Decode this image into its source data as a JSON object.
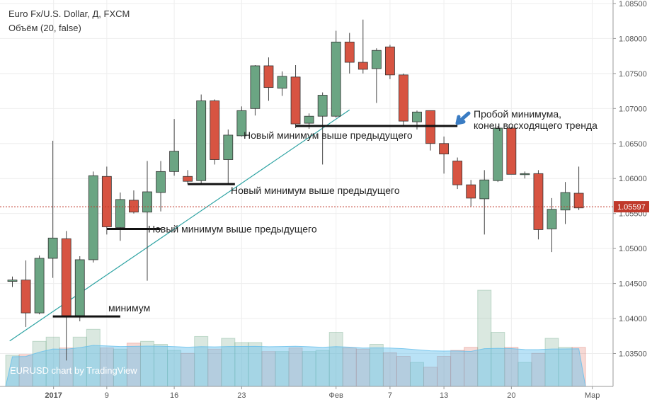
{
  "header": {
    "symbol_line": "Euro Fx/U.S. Dollar, Д, FXCM",
    "volume_line": "Объём (20, false)"
  },
  "watermark": "EURUSD chart by TradingView",
  "colors": {
    "up": "#6ba583",
    "down": "#d75442",
    "grid": "#eeeeee",
    "trendline": "#2ea3a3",
    "price_line": "#c0392b",
    "annotation_arrow": "#3a7cc3"
  },
  "chart_data": {
    "type": "candlestick",
    "y_axis": {
      "range": [
        1.0303,
        1.0855
      ],
      "ticks": [
        "1.08500",
        "1.08000",
        "1.07500",
        "1.07000",
        "1.06500",
        "1.06000",
        "1.05500",
        "1.05000",
        "1.04500",
        "1.04000",
        "1.03500"
      ]
    },
    "x_axis": {
      "ticks": [
        {
          "label": "2017",
          "bar": 3,
          "bold": true
        },
        {
          "label": "9",
          "bar": 7
        },
        {
          "label": "16",
          "bar": 12
        },
        {
          "label": "23",
          "bar": 17
        },
        {
          "label": "Фев",
          "bar": 24
        },
        {
          "label": "7",
          "bar": 28
        },
        {
          "label": "13",
          "bar": 32
        },
        {
          "label": "20",
          "bar": 37
        },
        {
          "label": "Мар",
          "bar": 43
        }
      ]
    },
    "current_price": "1.05597",
    "candles": [
      {
        "o": 1.0453,
        "h": 1.046,
        "l": 1.0445,
        "c": 1.0455
      },
      {
        "o": 1.0455,
        "h": 1.0483,
        "l": 1.0388,
        "c": 1.0408
      },
      {
        "o": 1.0408,
        "h": 1.049,
        "l": 1.0406,
        "c": 1.0486
      },
      {
        "o": 1.0486,
        "h": 1.0654,
        "l": 1.0458,
        "c": 1.0515
      },
      {
        "o": 1.0514,
        "h": 1.0525,
        "l": 1.034,
        "c": 1.0403
      },
      {
        "o": 1.0404,
        "h": 1.0489,
        "l": 1.0396,
        "c": 1.0484
      },
      {
        "o": 1.0484,
        "h": 1.061,
        "l": 1.048,
        "c": 1.0604
      },
      {
        "o": 1.0603,
        "h": 1.0617,
        "l": 1.052,
        "c": 1.0531
      },
      {
        "o": 1.053,
        "h": 1.058,
        "l": 1.0511,
        "c": 1.057
      },
      {
        "o": 1.0569,
        "h": 1.0583,
        "l": 1.055,
        "c": 1.0552
      },
      {
        "o": 1.0552,
        "h": 1.0625,
        "l": 1.0454,
        "c": 1.0581
      },
      {
        "o": 1.058,
        "h": 1.0625,
        "l": 1.0553,
        "c": 1.061
      },
      {
        "o": 1.061,
        "h": 1.0685,
        "l": 1.0604,
        "c": 1.0639
      },
      {
        "o": 1.0603,
        "h": 1.0612,
        "l": 1.0592,
        "c": 1.0596
      },
      {
        "o": 1.0597,
        "h": 1.072,
        "l": 1.0593,
        "c": 1.0711
      },
      {
        "o": 1.0711,
        "h": 1.0713,
        "l": 1.062,
        "c": 1.0627
      },
      {
        "o": 1.0627,
        "h": 1.067,
        "l": 1.0592,
        "c": 1.0662
      },
      {
        "o": 1.0661,
        "h": 1.0703,
        "l": 1.066,
        "c": 1.0697
      },
      {
        "o": 1.07,
        "h": 1.0762,
        "l": 1.069,
        "c": 1.0761
      },
      {
        "o": 1.0761,
        "h": 1.0773,
        "l": 1.0711,
        "c": 1.073
      },
      {
        "o": 1.0729,
        "h": 1.0753,
        "l": 1.0718,
        "c": 1.0746
      },
      {
        "o": 1.0745,
        "h": 1.0762,
        "l": 1.0672,
        "c": 1.0678
      },
      {
        "o": 1.0679,
        "h": 1.0693,
        "l": 1.0671,
        "c": 1.0689
      },
      {
        "o": 1.0689,
        "h": 1.0723,
        "l": 1.062,
        "c": 1.0719
      },
      {
        "o": 1.0689,
        "h": 1.0811,
        "l": 1.0687,
        "c": 1.0795
      },
      {
        "o": 1.0795,
        "h": 1.0808,
        "l": 1.075,
        "c": 1.0766
      },
      {
        "o": 1.0766,
        "h": 1.0827,
        "l": 1.075,
        "c": 1.0756
      },
      {
        "o": 1.0757,
        "h": 1.0786,
        "l": 1.0708,
        "c": 1.0783
      },
      {
        "o": 1.0788,
        "h": 1.0791,
        "l": 1.0742,
        "c": 1.0748
      },
      {
        "o": 1.0748,
        "h": 1.075,
        "l": 1.0675,
        "c": 1.0682
      },
      {
        "o": 1.0681,
        "h": 1.0697,
        "l": 1.067,
        "c": 1.0695
      },
      {
        "o": 1.0697,
        "h": 1.0697,
        "l": 1.064,
        "c": 1.065
      },
      {
        "o": 1.065,
        "h": 1.066,
        "l": 1.0607,
        "c": 1.0635
      },
      {
        "o": 1.0625,
        "h": 1.063,
        "l": 1.0585,
        "c": 1.0591
      },
      {
        "o": 1.0591,
        "h": 1.0598,
        "l": 1.056,
        "c": 1.0572
      },
      {
        "o": 1.0571,
        "h": 1.0612,
        "l": 1.052,
        "c": 1.0598
      },
      {
        "o": 1.0597,
        "h": 1.0675,
        "l": 1.0595,
        "c": 1.0672
      },
      {
        "o": 1.0672,
        "h": 1.0674,
        "l": 1.061,
        "c": 1.0606
      },
      {
        "o": 1.0606,
        "h": 1.061,
        "l": 1.06,
        "c": 1.0607
      },
      {
        "o": 1.0607,
        "h": 1.0612,
        "l": 1.0513,
        "c": 1.0527
      },
      {
        "o": 1.0528,
        "h": 1.0572,
        "l": 1.0495,
        "c": 1.0556
      },
      {
        "o": 1.0555,
        "h": 1.0595,
        "l": 1.0535,
        "c": 1.058
      },
      {
        "o": 1.0579,
        "h": 1.0617,
        "l": 1.0555,
        "c": 1.0558
      }
    ],
    "volume": [
      {
        "v": 0.52,
        "up": true
      },
      {
        "v": 0.53,
        "up": false
      },
      {
        "v": 0.75,
        "up": true
      },
      {
        "v": 0.82,
        "up": true
      },
      {
        "v": 0.64,
        "up": false
      },
      {
        "v": 0.82,
        "up": true
      },
      {
        "v": 0.95,
        "up": true
      },
      {
        "v": 0.64,
        "up": false
      },
      {
        "v": 0.62,
        "up": true
      },
      {
        "v": 0.72,
        "up": false
      },
      {
        "v": 0.75,
        "up": true
      },
      {
        "v": 0.7,
        "up": true
      },
      {
        "v": 0.6,
        "up": true
      },
      {
        "v": 0.55,
        "up": false
      },
      {
        "v": 0.83,
        "up": true
      },
      {
        "v": 0.62,
        "up": false
      },
      {
        "v": 0.8,
        "up": true
      },
      {
        "v": 0.73,
        "up": true
      },
      {
        "v": 0.73,
        "up": true
      },
      {
        "v": 0.58,
        "up": false
      },
      {
        "v": 0.58,
        "up": true
      },
      {
        "v": 0.64,
        "up": false
      },
      {
        "v": 0.58,
        "up": true
      },
      {
        "v": 0.6,
        "up": true
      },
      {
        "v": 0.9,
        "up": true
      },
      {
        "v": 0.64,
        "up": false
      },
      {
        "v": 0.62,
        "up": false
      },
      {
        "v": 0.7,
        "up": true
      },
      {
        "v": 0.56,
        "up": false
      },
      {
        "v": 0.5,
        "up": false
      },
      {
        "v": 0.4,
        "up": true
      },
      {
        "v": 0.32,
        "up": false
      },
      {
        "v": 0.5,
        "up": false
      },
      {
        "v": 0.6,
        "up": false
      },
      {
        "v": 0.65,
        "up": false
      },
      {
        "v": 1.6,
        "up": true
      },
      {
        "v": 0.9,
        "up": true
      },
      {
        "v": 0.65,
        "up": false
      },
      {
        "v": 0.4,
        "up": true
      },
      {
        "v": 0.55,
        "up": false
      },
      {
        "v": 0.8,
        "up": true
      },
      {
        "v": 0.65,
        "up": true
      },
      {
        "v": 0.65,
        "up": false
      }
    ],
    "annotations": [
      {
        "text": "минимум",
        "level": 1.0403,
        "from_bar": 3,
        "to_bar": 8,
        "label_bar": 8.3
      },
      {
        "text": "Новый минимум выше предыдущего",
        "level": 1.0528,
        "from_bar": 7,
        "to_bar": 11,
        "label_bar": 11.2
      },
      {
        "text": "Новый минимум выше предыдущего",
        "level": 1.0592,
        "from_bar": 13,
        "to_bar": 16.5,
        "label_bar": 17
      },
      {
        "text": "Новый минимум выше предыдущего",
        "level": 1.0675,
        "from_bar": 21,
        "to_bar": 33,
        "label_bar": 18
      },
      {
        "line1": "Пробой минимума,",
        "line2": "конец восходящего тренда",
        "level": 1.07,
        "label_bar": 36
      }
    ],
    "trendline": {
      "start": {
        "bar": -0.2,
        "price": 1.0368
      },
      "end": {
        "bar": 25,
        "price": 1.0698
      }
    }
  }
}
